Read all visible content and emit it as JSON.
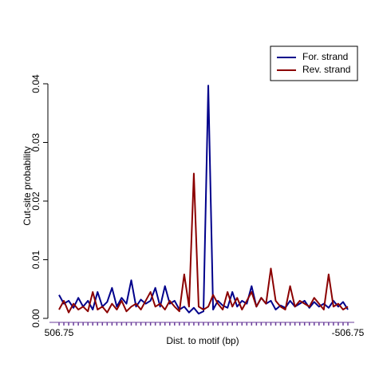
{
  "chart_data": {
    "type": "line",
    "xlabel": "Dist. to motif (bp)",
    "ylabel": "Cut-site probability",
    "categories": [
      "506.75",
      null,
      null,
      null,
      null,
      null,
      null,
      null,
      null,
      null,
      null,
      null,
      null,
      null,
      null,
      null,
      null,
      null,
      null,
      null,
      null,
      null,
      null,
      null,
      null,
      null,
      null,
      null,
      null,
      null,
      null,
      null,
      null,
      null,
      null,
      null,
      null,
      null,
      null,
      null,
      null,
      null,
      null,
      null,
      null,
      null,
      null,
      null,
      null,
      null,
      null,
      null,
      null,
      null,
      null,
      null,
      null,
      null,
      null,
      null,
      "-506.75"
    ],
    "series": [
      {
        "name": "For. strand",
        "color": "#00008b",
        "values": [
          0.004,
          0.0025,
          0.003,
          0.0018,
          0.0035,
          0.002,
          0.003,
          0.0015,
          0.0045,
          0.002,
          0.0028,
          0.0052,
          0.002,
          0.0035,
          0.0025,
          0.0065,
          0.002,
          0.0032,
          0.0025,
          0.003,
          0.0052,
          0.002,
          0.0055,
          0.0025,
          0.003,
          0.0015,
          0.002,
          0.001,
          0.0018,
          0.0008,
          0.0012,
          0.0397,
          0.0015,
          0.003,
          0.0022,
          0.0018,
          0.0045,
          0.002,
          0.003,
          0.0025,
          0.0055,
          0.002,
          0.0035,
          0.0025,
          0.003,
          0.0015,
          0.0022,
          0.0018,
          0.003,
          0.002,
          0.0025,
          0.003,
          0.0018,
          0.0028,
          0.002,
          0.0025,
          0.0018,
          0.003,
          0.002,
          0.0028,
          0.0015
        ]
      },
      {
        "name": "Rev. strand",
        "color": "#8b0000",
        "values": [
          0.0015,
          0.003,
          0.001,
          0.0025,
          0.0015,
          0.002,
          0.0012,
          0.0045,
          0.0015,
          0.002,
          0.001,
          0.0025,
          0.0015,
          0.003,
          0.0012,
          0.002,
          0.0025,
          0.0015,
          0.003,
          0.0045,
          0.002,
          0.0025,
          0.0015,
          0.003,
          0.002,
          0.0012,
          0.0075,
          0.002,
          0.0247,
          0.002,
          0.0015,
          0.002,
          0.004,
          0.0025,
          0.0015,
          0.0045,
          0.002,
          0.0035,
          0.0015,
          0.003,
          0.0045,
          0.002,
          0.0035,
          0.0025,
          0.0085,
          0.003,
          0.002,
          0.0015,
          0.0055,
          0.002,
          0.003,
          0.0025,
          0.002,
          0.0035,
          0.0025,
          0.0015,
          0.0075,
          0.002,
          0.0025,
          0.0015,
          0.002
        ]
      }
    ],
    "ylim": [
      0,
      0.04
    ],
    "yticks": [
      {
        "value": 0,
        "label": "0.00"
      },
      {
        "value": 0.01,
        "label": "0.01"
      },
      {
        "value": 0.02,
        "label": "0.02"
      },
      {
        "value": 0.03,
        "label": "0.03"
      },
      {
        "value": 0.04,
        "label": "0.04"
      }
    ],
    "tick_color": "#6a3d9a",
    "legend": "top-right"
  }
}
